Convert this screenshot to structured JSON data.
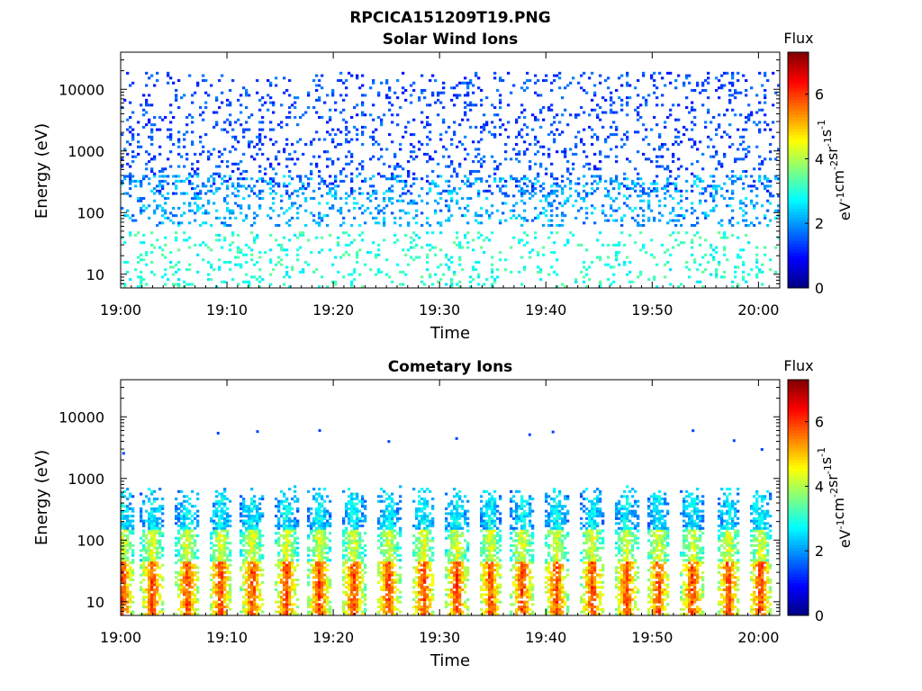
{
  "figure": {
    "title": "RPCICA151209T19.PNG"
  },
  "colorbar": {
    "label": "Flux",
    "units_main": "eV",
    "units_parts": [
      {
        "base": "eV",
        "sup": "-1"
      },
      {
        "base": "cm",
        "sup": "-2"
      },
      {
        "base": "sr",
        "sup": "-1"
      },
      {
        "base": "s",
        "sup": "-1"
      }
    ],
    "ticks": [
      "0",
      "2",
      "4",
      "6"
    ],
    "range": [
      0,
      7.3
    ],
    "colormap": "jet"
  },
  "chart_data": [
    {
      "type": "heatmap",
      "title": "Solar Wind Ions",
      "xlabel": "Time",
      "ylabel": "Energy (eV)",
      "yscale": "log",
      "ylim": [
        6,
        40000
      ],
      "xlim_minutes": [
        0,
        62
      ],
      "x_ticks": [
        "19:00",
        "19:10",
        "19:20",
        "19:30",
        "19:40",
        "19:50",
        "20:00"
      ],
      "x_tick_minutes": [
        0,
        10,
        20,
        30,
        40,
        50,
        60
      ],
      "y_ticks": [
        "10",
        "100",
        "1000",
        "10000"
      ],
      "y_tick_values": [
        10,
        100,
        1000,
        10000
      ],
      "description_of_values": "sparse low flux (~1-2) scattered across 100-20000 eV; flux ~2-4 below 100 eV",
      "bands": [
        {
          "emin": 200,
          "emax": 20000,
          "density": 0.12,
          "fmin": 1.0,
          "fmax": 1.9
        },
        {
          "emin": 60,
          "emax": 400,
          "density": 0.18,
          "fmin": 1.5,
          "fmax": 2.7
        },
        {
          "emin": 6,
          "emax": 50,
          "density": 0.12,
          "fmin": 2.5,
          "fmax": 3.5
        }
      ],
      "pulse_minutes": []
    },
    {
      "type": "heatmap",
      "title": "Cometary Ions",
      "xlabel": "Time",
      "ylabel": "Energy (eV)",
      "yscale": "log",
      "ylim": [
        6,
        40000
      ],
      "xlim_minutes": [
        0,
        62
      ],
      "x_ticks": [
        "19:00",
        "19:10",
        "19:20",
        "19:30",
        "19:40",
        "19:50",
        "20:00"
      ],
      "x_tick_minutes": [
        0,
        10,
        20,
        30,
        40,
        50,
        60
      ],
      "y_ticks": [
        "10",
        "100",
        "1000",
        "10000"
      ],
      "y_tick_values": [
        10,
        100,
        1000,
        10000
      ],
      "description_of_values": "periodic vertical bursts every ~3.2 min; peak flux ~5.5-6.5 near 15-40 eV, decreasing to ~2 at 500-800 eV",
      "pulse_minutes": [
        0.2,
        3.0,
        6.3,
        9.4,
        12.4,
        15.6,
        18.7,
        21.9,
        25.2,
        28.5,
        31.6,
        34.8,
        37.8,
        41.0,
        44.4,
        47.6,
        50.6,
        53.8,
        57.2,
        60.2
      ],
      "bands": []
    }
  ]
}
